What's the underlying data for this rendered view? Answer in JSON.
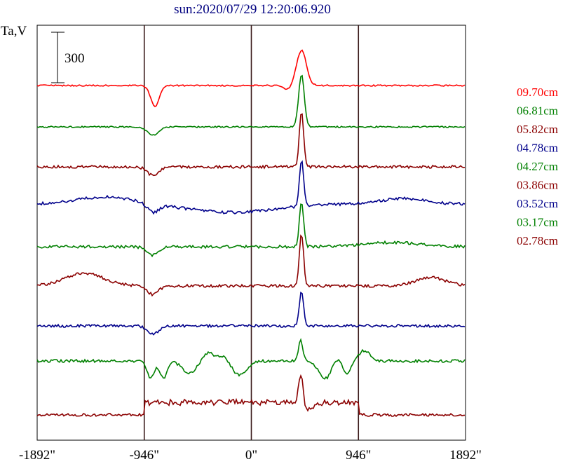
{
  "chart_data": {
    "type": "line",
    "title": "sun:2020/07/29 12:20:06.920",
    "ylabel": "Ta,V",
    "scale_bar_label": "300",
    "xlim": [
      -1892,
      1892
    ],
    "x_ticks": [
      {
        "value": -1892,
        "label": "-1892\""
      },
      {
        "value": -946,
        "label": "-946\""
      },
      {
        "value": 0,
        "label": "0\""
      },
      {
        "value": 946,
        "label": "946\""
      },
      {
        "value": 1892,
        "label": "1892\""
      }
    ],
    "vertical_guides": [
      -946,
      0,
      946
    ],
    "series": [
      {
        "name": "09.70cm",
        "color": "#ff0000"
      },
      {
        "name": "06.81cm",
        "color": "#008000"
      },
      {
        "name": "05.82cm",
        "color": "#8b0000"
      },
      {
        "name": "04.78cm",
        "color": "#00008b"
      },
      {
        "name": "04.27cm",
        "color": "#008000"
      },
      {
        "name": "03.86cm",
        "color": "#8b0000"
      },
      {
        "name": "03.52cm",
        "color": "#00008b"
      },
      {
        "name": "03.17cm",
        "color": "#008000"
      },
      {
        "name": "02.78cm",
        "color": "#8b0000"
      }
    ]
  }
}
